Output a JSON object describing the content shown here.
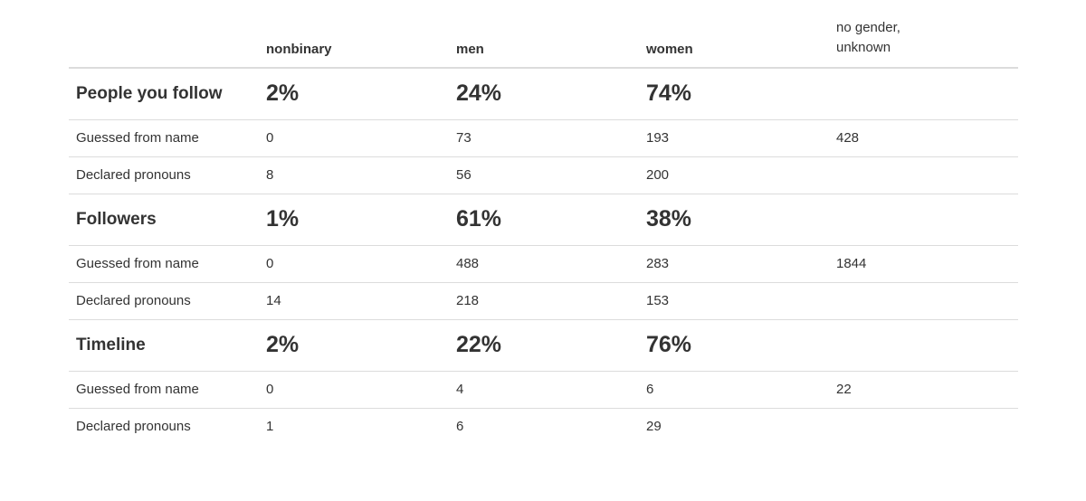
{
  "columns": [
    "",
    "nonbinary",
    "men",
    "women",
    "no gender,\nunknown"
  ],
  "column_unknown_line1": "no gender,",
  "column_unknown_line2": "unknown",
  "sections": [
    {
      "title": "People you follow",
      "percents": [
        "2%",
        "24%",
        "74%",
        ""
      ],
      "rows": [
        {
          "label": "Guessed from name",
          "values": [
            "0",
            "73",
            "193",
            "428"
          ]
        },
        {
          "label": "Declared pronouns",
          "values": [
            "8",
            "56",
            "200",
            ""
          ]
        }
      ]
    },
    {
      "title": "Followers",
      "percents": [
        "1%",
        "61%",
        "38%",
        ""
      ],
      "rows": [
        {
          "label": "Guessed from name",
          "values": [
            "0",
            "488",
            "283",
            "1844"
          ]
        },
        {
          "label": "Declared pronouns",
          "values": [
            "14",
            "218",
            "153",
            ""
          ]
        }
      ]
    },
    {
      "title": "Timeline",
      "percents": [
        "2%",
        "22%",
        "76%",
        ""
      ],
      "rows": [
        {
          "label": "Guessed from name",
          "values": [
            "0",
            "4",
            "6",
            "22"
          ]
        },
        {
          "label": "Declared pronouns",
          "values": [
            "1",
            "6",
            "29",
            ""
          ]
        }
      ]
    }
  ]
}
